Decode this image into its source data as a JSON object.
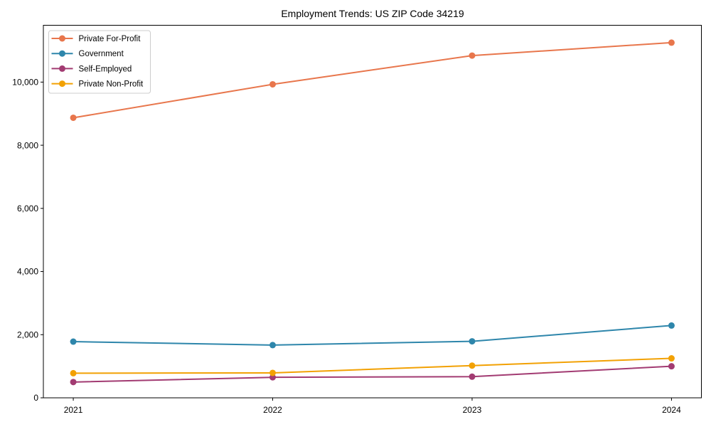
{
  "figure": {
    "background_color": "#ffffff"
  },
  "chart_data": {
    "type": "line",
    "title": "Employment Trends: US ZIP Code 34219",
    "xlabel": "",
    "ylabel": "",
    "x": [
      2021,
      2022,
      2023,
      2024
    ],
    "x_tick_labels": [
      "2021",
      "2022",
      "2023",
      "2024"
    ],
    "y_ticks": [
      0,
      2000,
      4000,
      6000,
      8000,
      10000
    ],
    "y_tick_labels": [
      "0",
      "2,000",
      "4,000",
      "6,000",
      "8,000",
      "10,000"
    ],
    "xlim": [
      2020.85,
      2024.15
    ],
    "ylim": [
      0,
      11800
    ],
    "grid": false,
    "axis_color": "#000000",
    "legend": {
      "position": "upper-left",
      "border_color": "#cccccc",
      "background_color": "#ffffff"
    },
    "series": [
      {
        "name": "Private For-Profit",
        "color": "#E8764C",
        "values": [
          8870,
          9930,
          10840,
          11250
        ]
      },
      {
        "name": "Government",
        "color": "#2E86AB",
        "values": [
          1780,
          1670,
          1790,
          2290
        ]
      },
      {
        "name": "Self-Employed",
        "color": "#A23B72",
        "values": [
          500,
          650,
          670,
          1000
        ]
      },
      {
        "name": "Private Non-Profit",
        "color": "#F2A104",
        "values": [
          780,
          790,
          1020,
          1250
        ]
      }
    ]
  }
}
